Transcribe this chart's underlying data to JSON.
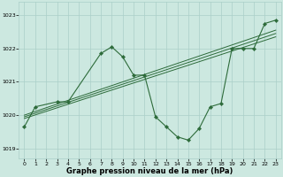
{
  "title": "Graphe pression niveau de la mer (hPa)",
  "background_color": "#cce8e0",
  "grid_color": "#aacfc8",
  "line_color": "#2d6b3a",
  "xlim": [
    -0.5,
    23.5
  ],
  "ylim": [
    1018.7,
    1023.4
  ],
  "yticks": [
    1019,
    1020,
    1021,
    1022,
    1023
  ],
  "xticks": [
    0,
    1,
    2,
    3,
    4,
    5,
    6,
    7,
    8,
    9,
    10,
    11,
    12,
    13,
    14,
    15,
    16,
    17,
    18,
    19,
    20,
    21,
    22,
    23
  ],
  "series_main": {
    "x": [
      0,
      1,
      3,
      4,
      7,
      8,
      9,
      10,
      11,
      12,
      13,
      14,
      15,
      16,
      17,
      18,
      19,
      20,
      21,
      22,
      23
    ],
    "y": [
      1019.65,
      1020.25,
      1020.4,
      1020.4,
      1021.85,
      1022.05,
      1021.75,
      1021.2,
      1021.2,
      1019.95,
      1019.65,
      1019.35,
      1019.25,
      1019.6,
      1020.25,
      1020.35,
      1022.0,
      1022.0,
      1022.0,
      1022.75,
      1022.85
    ]
  },
  "trend_lines": [
    {
      "x": [
        0,
        23
      ],
      "y": [
        1019.9,
        1022.35
      ]
    },
    {
      "x": [
        0,
        23
      ],
      "y": [
        1019.95,
        1022.45
      ]
    },
    {
      "x": [
        0,
        23
      ],
      "y": [
        1020.0,
        1022.55
      ]
    }
  ]
}
